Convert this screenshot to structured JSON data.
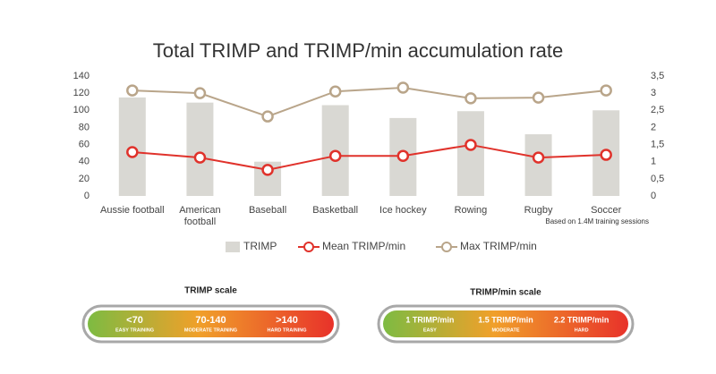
{
  "chart_data": {
    "type": "bar",
    "title": "Total TRIMP and TRIMP/min accumulation rate",
    "note": "Based on 1.4M training sessions",
    "categories": [
      "Aussie football",
      "American football",
      "Baseball",
      "Basketball",
      "Ice hockey",
      "Rowing",
      "Rugby",
      "Soccer"
    ],
    "series": [
      {
        "name": "TRIMP",
        "type": "bar",
        "axis": "y",
        "color": "#d9d8d3",
        "values": [
          115,
          109,
          40,
          106,
          91,
          99,
          72,
          100
        ]
      },
      {
        "name": "Mean TRIMP/min",
        "type": "line",
        "axis": "y2",
        "color": "#e0322b",
        "values": [
          1.28,
          1.12,
          0.76,
          1.17,
          1.17,
          1.49,
          1.12,
          1.2
        ]
      },
      {
        "name": "Max TRIMP/min",
        "type": "line",
        "axis": "y2",
        "color": "#b9a58a",
        "values": [
          3.08,
          3.0,
          2.32,
          3.05,
          3.16,
          2.85,
          2.87,
          3.08
        ]
      }
    ],
    "ylim": [
      0,
      140
    ],
    "yticks": [
      0,
      20,
      40,
      60,
      80,
      100,
      120,
      140
    ],
    "y2lim": [
      0,
      3.5
    ],
    "y2ticks": [
      0,
      {
        "value": 0.5,
        "label": "0,5"
      },
      1,
      {
        "value": 1.5,
        "label": "1,5"
      },
      2,
      {
        "value": 2.5,
        "label": "2,5"
      },
      3,
      {
        "value": 3.5,
        "label": "3,5"
      }
    ],
    "grid": false,
    "legend": "bottom"
  },
  "scales": [
    {
      "title": "TRIMP scale",
      "items": [
        {
          "value": "<70",
          "label": "EASY TRAINING"
        },
        {
          "value": "70-140",
          "label": "MODERATE TRAINING"
        },
        {
          "value": ">140",
          "label": "HARD TRAINING"
        }
      ]
    },
    {
      "title": "TRIMP/min scale",
      "items": [
        {
          "value": "1 TRIMP/min",
          "label": "EASY"
        },
        {
          "value": "1.5 TRIMP/min",
          "label": "MODERATE"
        },
        {
          "value": "2.2 TRIMP/min",
          "label": "HARD"
        }
      ]
    }
  ]
}
